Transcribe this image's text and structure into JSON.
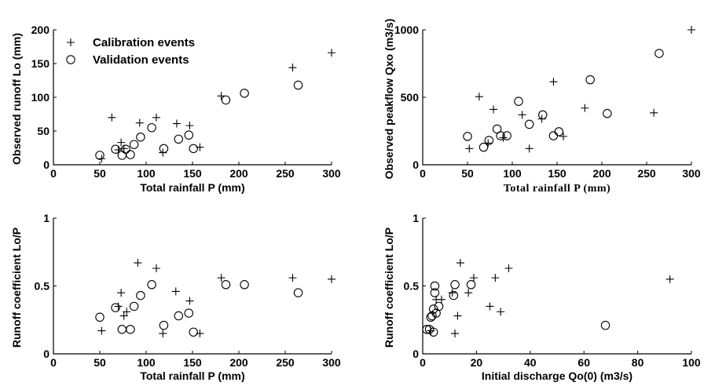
{
  "chart_data": [
    {
      "type": "scatter",
      "xlabel": "Total rainfall  P (mm)",
      "ylabel": "Observed runoff Lo (mm)",
      "xlim": [
        0,
        300
      ],
      "ylim": [
        0,
        200
      ],
      "xticks": [
        "0",
        "50",
        "100",
        "150",
        "200",
        "250",
        "300"
      ],
      "yticks": [
        "0",
        "50",
        "100",
        "150",
        "200"
      ],
      "legend": {
        "position": "top-left",
        "entries": [
          "Calibration events",
          "Validation events"
        ]
      },
      "series": [
        {
          "name": "Calibration events",
          "marker": "plus",
          "points": [
            [
              52,
              9
            ],
            [
              63,
              70
            ],
            [
              70,
              22
            ],
            [
              73,
              33
            ],
            [
              76,
              24
            ],
            [
              93,
              62
            ],
            [
              111,
              70
            ],
            [
              133,
              61
            ],
            [
              147,
              58
            ],
            [
              118,
              18
            ],
            [
              158,
              26
            ],
            [
              181,
              102
            ],
            [
              258,
              144
            ],
            [
              300,
              166
            ]
          ]
        },
        {
          "name": "Validation events",
          "marker": "circle",
          "points": [
            [
              50,
              14
            ],
            [
              67,
              23
            ],
            [
              74,
              14
            ],
            [
              78,
              23
            ],
            [
              83,
              15
            ],
            [
              87,
              30
            ],
            [
              94,
              41
            ],
            [
              106,
              55
            ],
            [
              119,
              24
            ],
            [
              135,
              38
            ],
            [
              146,
              44
            ],
            [
              151,
              24
            ],
            [
              186,
              96
            ],
            [
              206,
              106
            ],
            [
              264,
              118
            ]
          ]
        }
      ]
    },
    {
      "type": "scatter",
      "xlabel": "Total rainfall P (mm)",
      "ylabel": "Observed peakflow Qxo (m3/s)",
      "xlim": [
        0,
        300
      ],
      "ylim": [
        0,
        1000
      ],
      "xticks": [
        "0",
        "50",
        "100",
        "150",
        "200",
        "250",
        "300"
      ],
      "yticks": [
        "0",
        "500",
        "1000"
      ],
      "series": [
        {
          "name": "Calibration events",
          "marker": "plus",
          "points": [
            [
              52,
              120
            ],
            [
              63,
              505
            ],
            [
              73,
              160
            ],
            [
              79,
              410
            ],
            [
              90,
              200
            ],
            [
              111,
              370
            ],
            [
              119,
              120
            ],
            [
              133,
              340
            ],
            [
              146,
              615
            ],
            [
              157,
              210
            ],
            [
              181,
              420
            ],
            [
              258,
              385
            ],
            [
              300,
              1000
            ]
          ]
        },
        {
          "name": "Validation events",
          "marker": "circle",
          "points": [
            [
              50,
              210
            ],
            [
              68,
              130
            ],
            [
              74,
              180
            ],
            [
              83,
              265
            ],
            [
              87,
              215
            ],
            [
              94,
              215
            ],
            [
              107,
              470
            ],
            [
              119,
              300
            ],
            [
              134,
              370
            ],
            [
              146,
              215
            ],
            [
              152,
              245
            ],
            [
              187,
              630
            ],
            [
              206,
              380
            ],
            [
              264,
              825
            ]
          ]
        }
      ]
    },
    {
      "type": "scatter",
      "xlabel": "Total rainfall  P (mm)",
      "ylabel": "Runoff coefficient Lo/P",
      "xlim": [
        0,
        300
      ],
      "ylim": [
        0,
        1
      ],
      "xticks": [
        "0",
        "50",
        "100",
        "150",
        "200",
        "250",
        "300"
      ],
      "yticks": [
        "0",
        "0.5",
        "1"
      ],
      "series": [
        {
          "name": "Calibration events",
          "marker": "plus",
          "points": [
            [
              52,
              0.17
            ],
            [
              70,
              0.35
            ],
            [
              73,
              0.45
            ],
            [
              76,
              0.28
            ],
            [
              79,
              0.31
            ],
            [
              91,
              0.67
            ],
            [
              111,
              0.63
            ],
            [
              118,
              0.15
            ],
            [
              132,
              0.46
            ],
            [
              147,
              0.39
            ],
            [
              158,
              0.15
            ],
            [
              181,
              0.56
            ],
            [
              258,
              0.56
            ],
            [
              300,
              0.55
            ]
          ]
        },
        {
          "name": "Validation events",
          "marker": "circle",
          "points": [
            [
              50,
              0.27
            ],
            [
              67,
              0.34
            ],
            [
              74,
              0.18
            ],
            [
              83,
              0.18
            ],
            [
              87,
              0.35
            ],
            [
              94,
              0.43
            ],
            [
              106,
              0.51
            ],
            [
              119,
              0.21
            ],
            [
              135,
              0.28
            ],
            [
              146,
              0.3
            ],
            [
              151,
              0.16
            ],
            [
              186,
              0.51
            ],
            [
              206,
              0.51
            ],
            [
              264,
              0.45
            ]
          ]
        }
      ]
    },
    {
      "type": "scatter",
      "xlabel": "Initial discharge Qo(0) (m3/s)",
      "ylabel": "Runoff coefficient Lo/P",
      "xlim": [
        0,
        100
      ],
      "ylim": [
        0,
        1
      ],
      "xticks": [
        "0",
        "20",
        "40",
        "60",
        "80",
        "100"
      ],
      "yticks": [
        "0",
        "0.5",
        "1"
      ],
      "series": [
        {
          "name": "Calibration events",
          "marker": "plus",
          "points": [
            [
              3,
              0.17
            ],
            [
              5,
              0.4
            ],
            [
              7,
              0.4
            ],
            [
              11,
              0.45
            ],
            [
              12,
              0.15
            ],
            [
              13,
              0.28
            ],
            [
              14,
              0.67
            ],
            [
              17,
              0.45
            ],
            [
              19,
              0.56
            ],
            [
              25,
              0.35
            ],
            [
              27,
              0.56
            ],
            [
              29,
              0.31
            ],
            [
              32,
              0.63
            ],
            [
              92,
              0.55
            ]
          ]
        },
        {
          "name": "Validation events",
          "marker": "circle",
          "points": [
            [
              1.5,
              0.18
            ],
            [
              2.5,
              0.18
            ],
            [
              3,
              0.27
            ],
            [
              3.5,
              0.28
            ],
            [
              4,
              0.16
            ],
            [
              4,
              0.33
            ],
            [
              4.5,
              0.45
            ],
            [
              4.5,
              0.5
            ],
            [
              5,
              0.3
            ],
            [
              6,
              0.35
            ],
            [
              11.5,
              0.43
            ],
            [
              12,
              0.51
            ],
            [
              18,
              0.51
            ],
            [
              68,
              0.21
            ]
          ]
        }
      ]
    }
  ]
}
